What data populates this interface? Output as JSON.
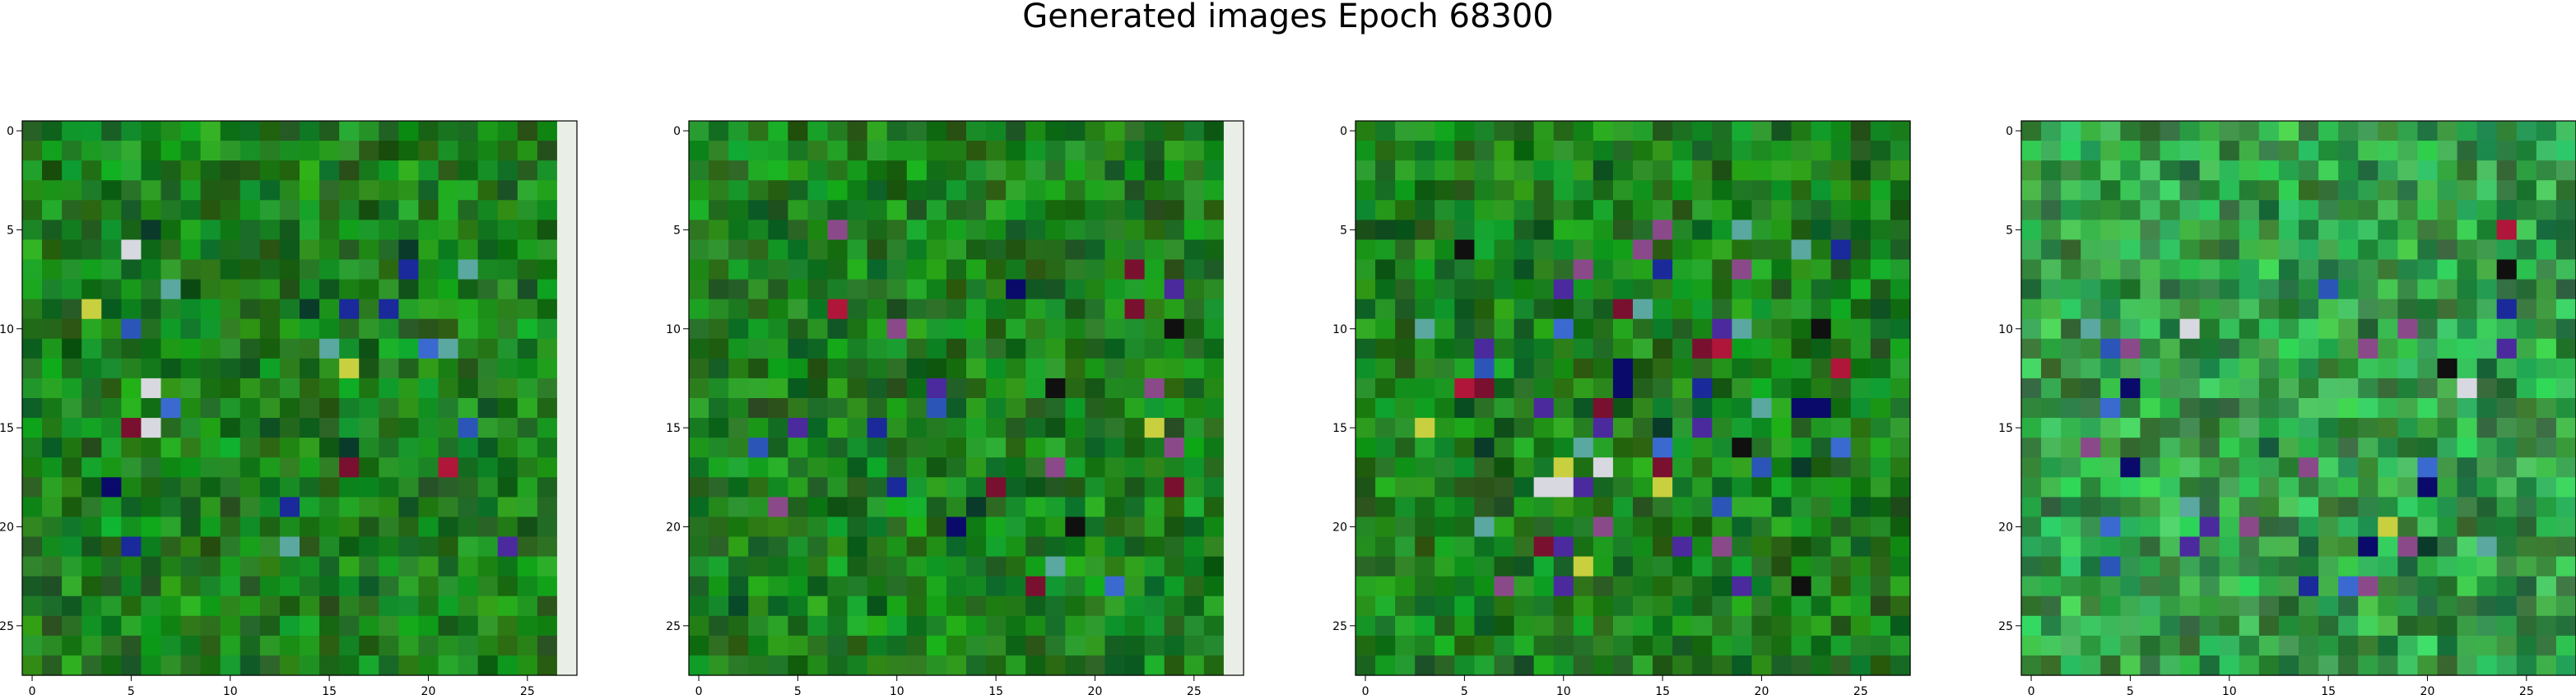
{
  "chart_data": {
    "type": "heatmap",
    "title": "Generated images Epoch 68300",
    "panels": [
      {
        "x_ticks": [
          "0",
          "5",
          "10",
          "15",
          "20",
          "25"
        ],
        "y_ticks": [
          "0",
          "5",
          "10",
          "15",
          "20",
          "25"
        ],
        "xlim": [
          -0.5,
          27.5
        ],
        "ylim": [
          27.5,
          -0.5
        ],
        "grid_size": [
          28,
          28
        ],
        "colormap": "rgb",
        "base_color": "#0b7f12"
      },
      {
        "x_ticks": [
          "0",
          "5",
          "10",
          "15",
          "20",
          "25"
        ],
        "y_ticks": [
          "0",
          "5",
          "10",
          "15",
          "20",
          "25"
        ],
        "xlim": [
          -0.5,
          27.5
        ],
        "ylim": [
          27.5,
          -0.5
        ],
        "grid_size": [
          28,
          28
        ],
        "colormap": "rgb",
        "base_color": "#0b7f12"
      },
      {
        "x_ticks": [
          "0",
          "5",
          "10",
          "15",
          "20",
          "25"
        ],
        "y_ticks": [
          "0",
          "5",
          "10",
          "15",
          "20",
          "25"
        ],
        "xlim": [
          -0.5,
          27.5
        ],
        "ylim": [
          27.5,
          -0.5
        ],
        "grid_size": [
          28,
          28
        ],
        "colormap": "rgb",
        "base_color": "#0b7f12"
      },
      {
        "x_ticks": [
          "0",
          "5",
          "10",
          "15",
          "20",
          "25"
        ],
        "y_ticks": [
          "0",
          "5",
          "10",
          "15",
          "20",
          "25"
        ],
        "xlim": [
          -0.5,
          27.5
        ],
        "ylim": [
          27.5,
          -0.5
        ],
        "grid_size": [
          28,
          28
        ],
        "colormap": "rgb",
        "base_color": "#23a040"
      }
    ]
  }
}
